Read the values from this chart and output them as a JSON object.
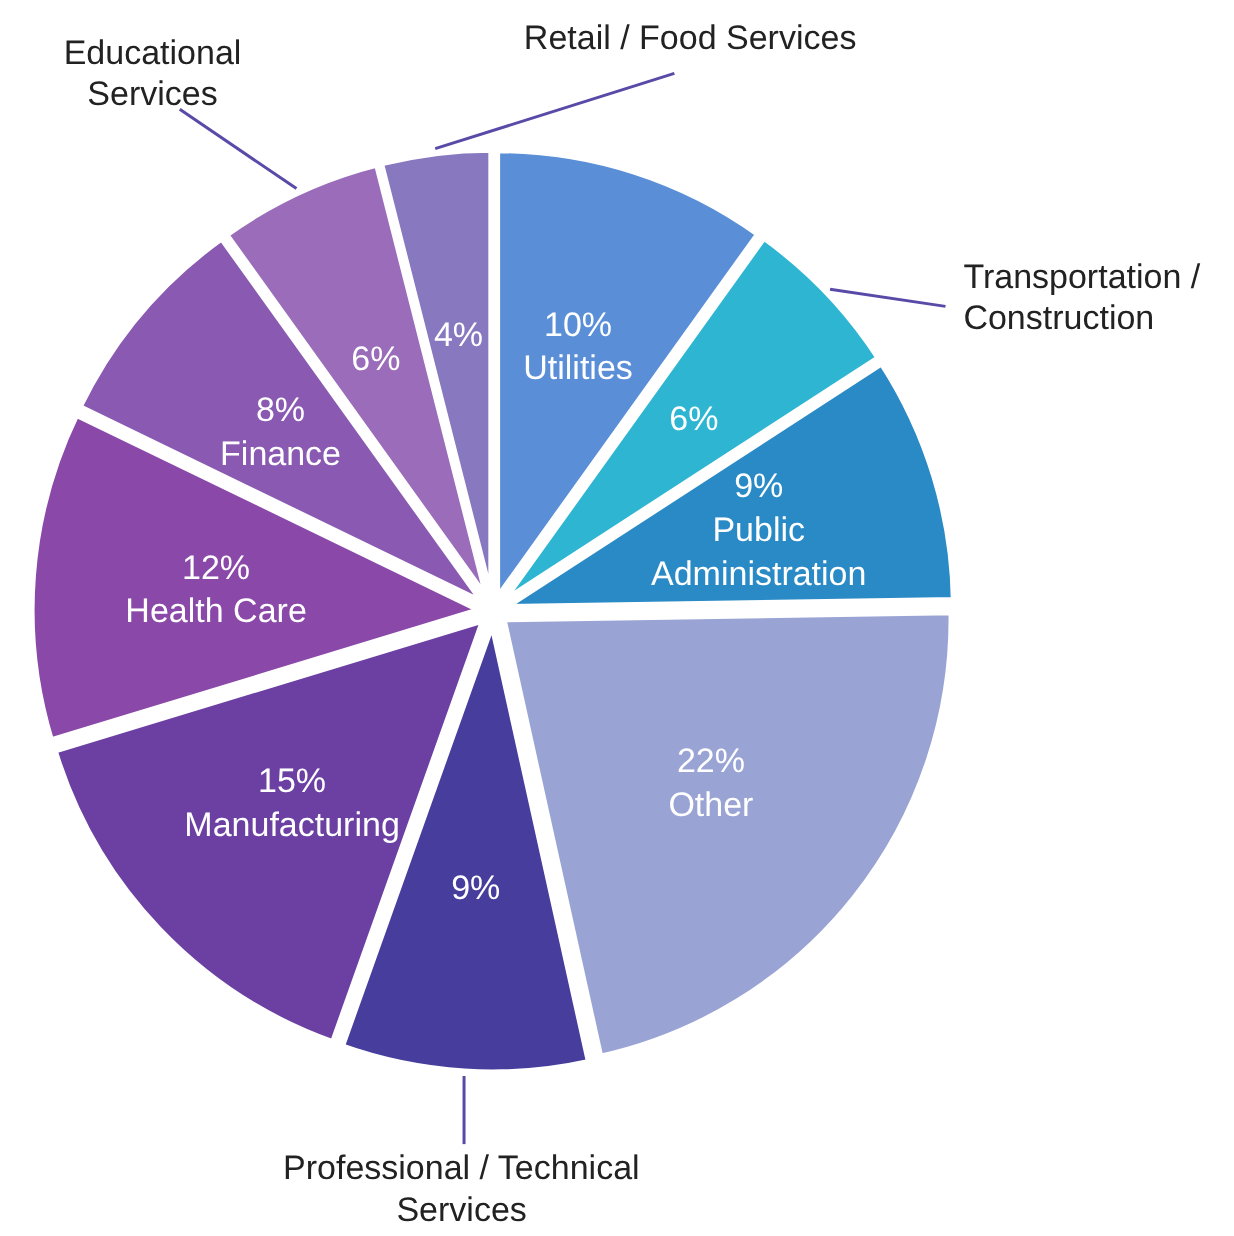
{
  "chart_data": {
    "type": "pie",
    "categories": [
      "Utilities",
      "Transportation / Construction",
      "Public Administration",
      "Other",
      "Professional / Technical Services",
      "Manufacturing",
      "Health Care",
      "Finance",
      "Educational Services",
      "Retail / Food Services"
    ],
    "values": [
      10,
      6,
      9,
      22,
      9,
      15,
      12,
      8,
      6,
      4
    ],
    "colors": [
      "#5a8fd8",
      "#2db5d2",
      "#2a8ac6",
      "#9aa4d4",
      "#463d9c",
      "#6b40a2",
      "#8a48a8",
      "#8a5ab2",
      "#9a6cba",
      "#8878c0"
    ],
    "value_labels": [
      "10%",
      "6%",
      "9%",
      "22%",
      "9%",
      "15%",
      "12%",
      "8%",
      "6%",
      "4%"
    ]
  }
}
